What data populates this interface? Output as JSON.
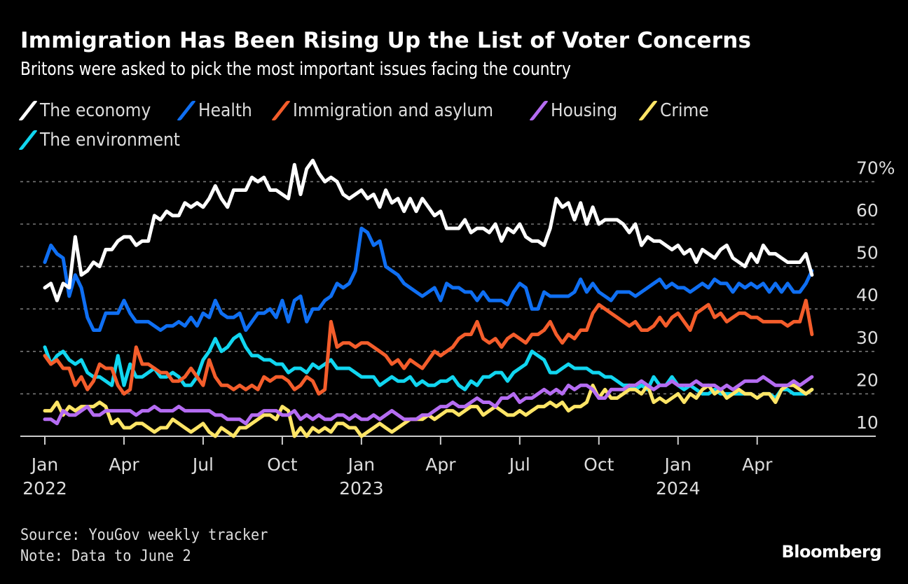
{
  "title": "Immigration Has Been Rising Up the List of Voter Concerns",
  "subtitle": "Britons were asked to pick the most important issues facing the country",
  "source": "Source: YouGov weekly tracker",
  "note": "Note: Data to June 2",
  "brand": "Bloomberg",
  "chart_data": {
    "type": "line",
    "title": "Immigration Has Been Rising Up the List of Voter Concerns",
    "subtitle": "Britons were asked to pick the most important issues facing the country",
    "xlabel": "",
    "ylabel": "",
    "x_unit": "weeks since Jan 3, 2022 (weekly, to June 2, 2024)",
    "x_range": [
      0,
      126
    ],
    "ylim": [
      10,
      70
    ],
    "y_ticks": [
      10,
      20,
      30,
      40,
      50,
      60,
      70
    ],
    "y_tick_labels": [
      "10",
      "20",
      "30",
      "40",
      "50",
      "60",
      "70%"
    ],
    "y_axis_side": "right",
    "grid": true,
    "legend_position": "top-left",
    "x_ticks": [
      {
        "week": 0,
        "label": "Jan",
        "year": "2022"
      },
      {
        "week": 13,
        "label": "Apr",
        "year": ""
      },
      {
        "week": 26,
        "label": "Jul",
        "year": ""
      },
      {
        "week": 39,
        "label": "Oct",
        "year": ""
      },
      {
        "week": 52,
        "label": "Jan",
        "year": "2023"
      },
      {
        "week": 65,
        "label": "Apr",
        "year": ""
      },
      {
        "week": 78,
        "label": "Jul",
        "year": ""
      },
      {
        "week": 91,
        "label": "Oct",
        "year": ""
      },
      {
        "week": 104,
        "label": "Jan",
        "year": "2024"
      },
      {
        "week": 117,
        "label": "Apr",
        "year": ""
      }
    ],
    "series": [
      {
        "name": "The economy",
        "color": "#ffffff",
        "values": [
          45,
          46,
          42,
          46,
          45,
          57,
          48,
          49,
          51,
          50,
          54,
          54,
          56,
          57,
          57,
          55,
          56,
          56,
          62,
          61,
          63,
          62,
          62,
          65,
          64,
          65,
          64,
          66,
          69,
          66,
          64,
          68,
          68,
          68,
          71,
          70,
          71,
          68,
          68,
          67,
          66,
          74,
          67,
          73,
          75,
          72,
          70,
          71,
          70,
          67,
          66,
          67,
          68,
          66,
          67,
          64,
          68,
          65,
          66,
          63,
          66,
          63,
          66,
          64,
          62,
          63,
          59,
          59,
          59,
          61,
          58,
          59,
          59,
          58,
          60,
          56,
          59,
          58,
          60,
          57,
          56,
          56,
          55,
          59,
          66,
          64,
          65,
          61,
          65,
          60,
          64,
          60,
          61,
          61,
          61,
          60,
          58,
          60,
          55,
          57,
          56,
          56,
          55,
          54,
          55,
          53,
          54,
          51,
          54,
          53,
          52,
          54,
          55,
          52,
          51,
          50,
          53,
          51,
          55,
          53,
          53,
          52,
          51,
          51,
          51,
          53,
          48
        ]
      },
      {
        "name": "Health",
        "color": "#0f6ff3",
        "values": [
          51,
          55,
          53,
          52,
          43,
          48,
          45,
          38,
          35,
          35,
          39,
          39,
          39,
          42,
          39,
          37,
          37,
          37,
          36,
          35,
          36,
          36,
          37,
          36,
          38,
          36,
          39,
          38,
          42,
          39,
          38,
          38,
          39,
          35,
          37,
          39,
          39,
          40,
          38,
          42,
          37,
          42,
          43,
          37,
          40,
          40,
          42,
          43,
          46,
          45,
          46,
          49,
          59,
          58,
          55,
          56,
          50,
          49,
          48,
          46,
          45,
          44,
          43,
          44,
          45,
          42,
          46,
          45,
          45,
          44,
          44,
          42,
          44,
          42,
          42,
          42,
          41,
          44,
          46,
          45,
          40,
          40,
          44,
          43,
          43,
          43,
          43,
          44,
          47,
          44,
          46,
          44,
          43,
          42,
          44,
          44,
          44,
          43,
          44,
          45,
          46,
          47,
          45,
          46,
          45,
          45,
          44,
          45,
          46,
          45,
          47,
          46,
          46,
          44,
          46,
          45,
          46,
          45,
          46,
          44,
          46,
          44,
          46,
          44,
          44,
          46,
          49
        ]
      },
      {
        "name": "Immigration and asylum",
        "color": "#f45d2b",
        "values": [
          29,
          27,
          28,
          26,
          26,
          22,
          24,
          21,
          23,
          27,
          26,
          26,
          22,
          20,
          21,
          31,
          27,
          27,
          26,
          25,
          25,
          23,
          23,
          24,
          26,
          24,
          22,
          28,
          24,
          22,
          22,
          21,
          22,
          21,
          22,
          21,
          24,
          23,
          24,
          24,
          23,
          21,
          22,
          24,
          23,
          20,
          21,
          37,
          31,
          32,
          32,
          31,
          32,
          32,
          31,
          30,
          29,
          27,
          28,
          26,
          28,
          27,
          26,
          28,
          30,
          29,
          30,
          31,
          33,
          34,
          34,
          37,
          33,
          32,
          33,
          31,
          33,
          34,
          33,
          32,
          34,
          34,
          35,
          37,
          34,
          32,
          34,
          33,
          35,
          35,
          39,
          41,
          40,
          39,
          38,
          37,
          36,
          37,
          35,
          35,
          36,
          38,
          36,
          38,
          39,
          37,
          35,
          39,
          40,
          41,
          38,
          39,
          37,
          38,
          39,
          39,
          38,
          38,
          37,
          37,
          37,
          37,
          36,
          37,
          37,
          42,
          34
        ]
      },
      {
        "name": "Housing",
        "color": "#b56cf2",
        "values": [
          14,
          14,
          13,
          16,
          15,
          15,
          16,
          17,
          15,
          15,
          16,
          16,
          16,
          16,
          16,
          15,
          16,
          16,
          17,
          16,
          16,
          16,
          17,
          16,
          16,
          16,
          16,
          16,
          15,
          15,
          14,
          14,
          14,
          13,
          15,
          15,
          16,
          16,
          16,
          15,
          15,
          16,
          14,
          15,
          14,
          15,
          14,
          14,
          15,
          15,
          14,
          15,
          14,
          14,
          15,
          14,
          15,
          16,
          15,
          14,
          14,
          14,
          15,
          15,
          16,
          17,
          17,
          18,
          17,
          17,
          18,
          19,
          18,
          18,
          17,
          19,
          19,
          20,
          18,
          19,
          19,
          20,
          21,
          20,
          21,
          20,
          22,
          21,
          22,
          22,
          21,
          19,
          19,
          21,
          21,
          21,
          22,
          22,
          23,
          22,
          21,
          22,
          22,
          23,
          22,
          22,
          22,
          23,
          22,
          22,
          22,
          21,
          22,
          21,
          22,
          23,
          23,
          23,
          24,
          23,
          22,
          22,
          22,
          23,
          22,
          23,
          24
        ]
      },
      {
        "name": "Crime",
        "color": "#ffe566",
        "values": [
          16,
          16,
          18,
          15,
          17,
          16,
          17,
          17,
          17,
          18,
          17,
          13,
          14,
          12,
          12,
          13,
          13,
          12,
          11,
          12,
          12,
          14,
          13,
          12,
          11,
          12,
          13,
          11,
          10,
          12,
          11,
          10,
          12,
          12,
          13,
          14,
          15,
          15,
          14,
          17,
          16,
          10,
          12,
          10,
          12,
          11,
          12,
          11,
          13,
          13,
          12,
          12,
          10,
          11,
          12,
          13,
          12,
          11,
          12,
          13,
          14,
          14,
          14,
          15,
          14,
          15,
          16,
          16,
          15,
          16,
          17,
          17,
          15,
          16,
          17,
          16,
          15,
          15,
          16,
          15,
          16,
          17,
          17,
          18,
          17,
          18,
          16,
          17,
          17,
          18,
          22,
          19,
          21,
          19,
          19,
          20,
          21,
          21,
          20,
          22,
          18,
          19,
          18,
          19,
          20,
          18,
          20,
          19,
          21,
          22,
          20,
          21,
          19,
          20,
          21,
          20,
          20,
          19,
          20,
          20,
          18,
          21,
          22,
          22,
          21,
          20,
          21
        ]
      },
      {
        "name": "The environment",
        "color": "#11d6f0",
        "values": [
          31,
          27,
          29,
          30,
          28,
          27,
          28,
          25,
          24,
          24,
          23,
          22,
          29,
          22,
          27,
          24,
          24,
          25,
          26,
          24,
          24,
          25,
          24,
          22,
          22,
          24,
          28,
          30,
          33,
          30,
          31,
          33,
          34,
          31,
          29,
          29,
          28,
          28,
          27,
          27,
          25,
          26,
          26,
          25,
          27,
          26,
          27,
          28,
          26,
          26,
          26,
          25,
          24,
          24,
          24,
          22,
          23,
          24,
          23,
          23,
          24,
          22,
          23,
          22,
          22,
          23,
          23,
          24,
          22,
          21,
          23,
          22,
          24,
          24,
          25,
          25,
          23,
          25,
          26,
          27,
          30,
          29,
          28,
          25,
          25,
          26,
          27,
          26,
          26,
          26,
          25,
          25,
          24,
          24,
          23,
          22,
          22,
          21,
          22,
          21,
          24,
          22,
          22,
          24,
          22,
          21,
          22,
          21,
          20,
          20,
          21,
          20,
          20,
          20,
          20,
          20,
          20,
          19,
          20,
          20,
          19,
          21,
          21,
          20,
          20,
          20,
          21
        ]
      }
    ]
  }
}
